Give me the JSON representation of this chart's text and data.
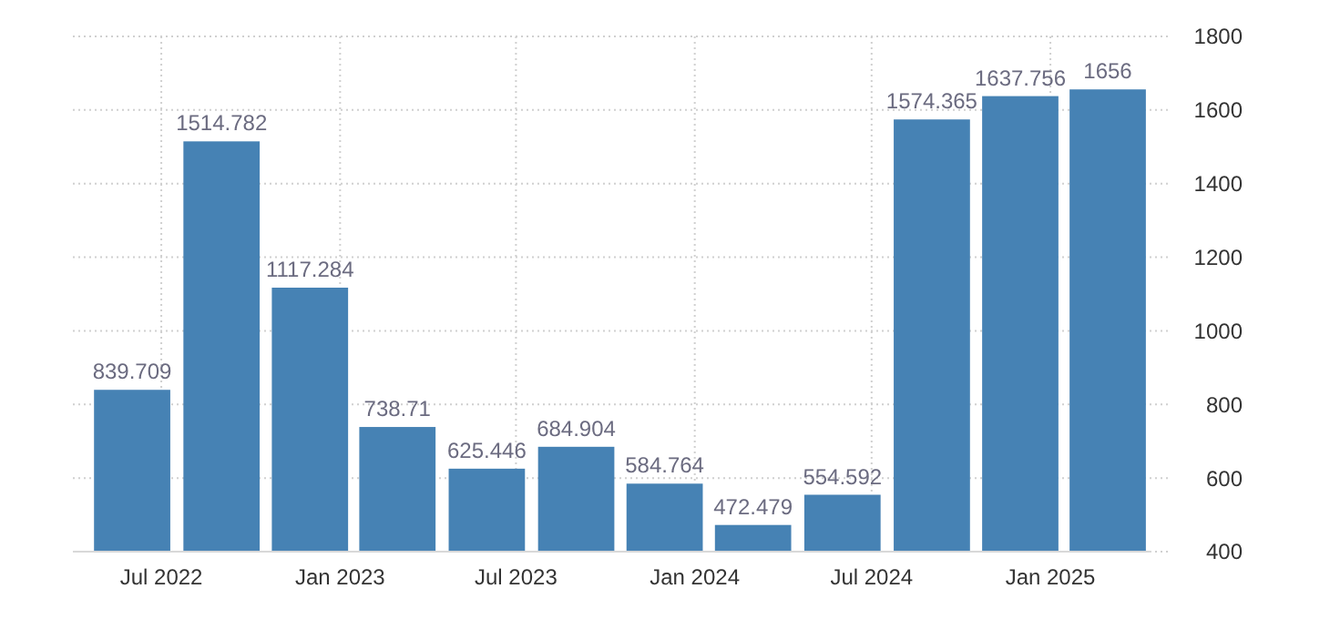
{
  "chart_data": {
    "type": "bar",
    "x": [
      "2022-06",
      "2022-09",
      "2022-12",
      "2023-03",
      "2023-06",
      "2023-09",
      "2023-12",
      "2024-03",
      "2024-06",
      "2024-09",
      "2024-12",
      "2025-03"
    ],
    "values": [
      839.709,
      1514.782,
      1117.284,
      738.71,
      625.446,
      684.904,
      584.764,
      472.479,
      554.592,
      1574.365,
      1637.756,
      1656
    ],
    "color": "#4682b4",
    "data_labels": true,
    "grid": true,
    "xlim": [
      "2022-04-01",
      "2025-04-15"
    ],
    "xticks": [
      {
        "value": "2022-07",
        "label": "Jul 2022"
      },
      {
        "value": "2023-01",
        "label": "Jan 2023"
      },
      {
        "value": "2023-07",
        "label": "Jul 2023"
      },
      {
        "value": "2024-01",
        "label": "Jan 2024"
      },
      {
        "value": "2024-07",
        "label": "Jul 2024"
      },
      {
        "value": "2025-01",
        "label": "Jan 2025"
      }
    ],
    "ylim": [
      400,
      1800
    ],
    "yticks": [
      400,
      600,
      800,
      1000,
      1200,
      1400,
      1600,
      1800
    ]
  }
}
